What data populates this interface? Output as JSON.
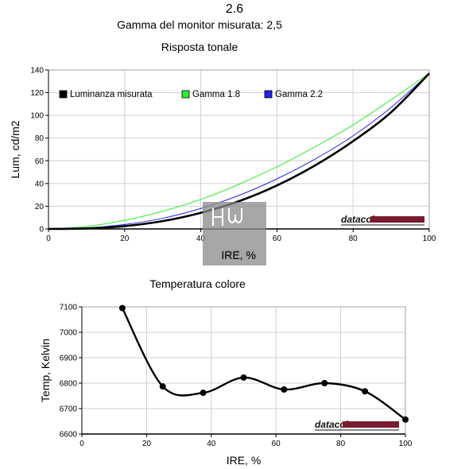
{
  "header": {
    "title": "2.6",
    "subtitle": "Gamma del monitor misurata: 2,5"
  },
  "watermark": {
    "text": "IRE, %"
  },
  "chart_data": [
    {
      "type": "line",
      "title": "Risposta tonale",
      "xlabel": "IRE, %",
      "ylabel": "Lum, cd/m2",
      "xlim": [
        0,
        100
      ],
      "ylim": [
        0,
        140
      ],
      "xticks": [
        0,
        20,
        40,
        60,
        80,
        100
      ],
      "yticks": [
        0,
        20,
        40,
        60,
        80,
        100,
        120,
        140
      ],
      "grid": true,
      "legend_position": "top-left",
      "brand_label": "datacolor",
      "series": [
        {
          "name": "Luminanza misurata",
          "color": "#000000",
          "x": [
            0,
            10,
            20,
            30,
            40,
            50,
            60,
            70,
            80,
            90,
            100
          ],
          "values": [
            0,
            0.5,
            2.5,
            6.9,
            14.2,
            24.4,
            38.3,
            55.9,
            77.3,
            102.8,
            137
          ]
        },
        {
          "name": "Gamma 1.8",
          "color": "#33ee33",
          "x": [
            0,
            10,
            20,
            30,
            40,
            50,
            60,
            70,
            80,
            90,
            100
          ],
          "values": [
            0,
            2.2,
            7.6,
            15.6,
            26.0,
            39.3,
            54.7,
            72.3,
            91.6,
            113.8,
            137
          ]
        },
        {
          "name": "Gamma 2.2",
          "color": "#2222ee",
          "x": [
            0,
            10,
            20,
            30,
            40,
            50,
            60,
            70,
            80,
            90,
            100
          ],
          "values": [
            0,
            0.9,
            3.9,
            9.4,
            18.0,
            29.5,
            44.1,
            61.5,
            82.0,
            107.0,
            137
          ]
        }
      ]
    },
    {
      "type": "line",
      "title": "Temperatura colore",
      "xlabel": "IRE, %",
      "ylabel": "Temp, Kelvin",
      "xlim": [
        0,
        100
      ],
      "ylim": [
        6600,
        7100
      ],
      "xticks": [
        0,
        20,
        40,
        60,
        80,
        100
      ],
      "yticks": [
        6600,
        6700,
        6800,
        6900,
        7000,
        7100
      ],
      "grid": true,
      "brand_label": "datacolor",
      "series": [
        {
          "color": "#000000",
          "x": [
            12.5,
            25,
            37.5,
            50,
            62.5,
            75,
            87.5,
            100
          ],
          "values": [
            7095,
            6787,
            6762,
            6822,
            6775,
            6800,
            6768,
            6657
          ]
        }
      ]
    }
  ]
}
